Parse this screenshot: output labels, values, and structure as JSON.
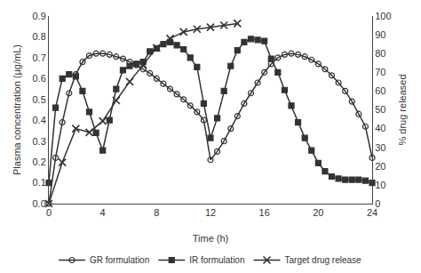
{
  "chart_data": {
    "type": "line",
    "xlabel": "Time (h)",
    "ylabel": "Plasma concentration (μg/mL)",
    "y2label": "% drug released",
    "xlim": [
      0,
      24
    ],
    "ylim": [
      0.0,
      0.9
    ],
    "y2lim": [
      0,
      100
    ],
    "xticks": [
      0,
      4,
      8,
      12,
      16,
      20,
      24
    ],
    "yticks": [
      {
        "value": 0.0,
        "label": "0.0"
      },
      0.1,
      0.2,
      0.3,
      0.4,
      0.5,
      0.6,
      0.7,
      0.8,
      0.9
    ],
    "y2ticks": [
      0,
      10,
      20,
      30,
      40,
      50,
      60,
      70,
      80,
      90,
      100
    ],
    "grid": false,
    "legend": "bottom",
    "series": [
      {
        "name": "GR formulation",
        "color": "#333333",
        "marker": "open circle",
        "x": [
          0,
          0.5,
          1,
          1.5,
          2,
          2.5,
          3,
          3.5,
          4,
          4.5,
          5,
          5.5,
          6,
          6.5,
          7,
          7.5,
          8,
          8.5,
          9,
          9.5,
          10,
          10.5,
          11,
          11.5,
          12,
          12.5,
          13,
          13.5,
          14,
          14.5,
          15,
          15.5,
          16,
          16.5,
          17,
          17.5,
          18,
          18.5,
          19,
          19.5,
          20,
          20.5,
          21,
          21.5,
          22,
          22.5,
          23,
          23.5,
          24
        ],
        "values": [
          0.0,
          0.22,
          0.39,
          0.53,
          0.62,
          0.68,
          0.71,
          0.72,
          0.72,
          0.715,
          0.705,
          0.695,
          0.68,
          0.665,
          0.645,
          0.625,
          0.6,
          0.575,
          0.55,
          0.525,
          0.5,
          0.47,
          0.44,
          0.4,
          0.21,
          0.25,
          0.3,
          0.36,
          0.42,
          0.48,
          0.53,
          0.58,
          0.63,
          0.67,
          0.7,
          0.715,
          0.72,
          0.715,
          0.705,
          0.69,
          0.67,
          0.645,
          0.615,
          0.58,
          0.54,
          0.49,
          0.43,
          0.37,
          0.22
        ]
      },
      {
        "name": "IR formulation",
        "color": "#333333",
        "marker": "square",
        "x": [
          0,
          0.5,
          1,
          1.5,
          2,
          2.5,
          3,
          3.5,
          4,
          4.5,
          5,
          5.5,
          6,
          6.5,
          7,
          7.5,
          8,
          8.5,
          9,
          9.5,
          10,
          10.5,
          11,
          11.5,
          12,
          12.5,
          13,
          13.5,
          14,
          14.5,
          15,
          15.5,
          16,
          16.5,
          17,
          17.5,
          18,
          18.5,
          19,
          19.5,
          20,
          20.5,
          21,
          21.5,
          22,
          22.5,
          23,
          23.5,
          24
        ],
        "values": [
          0.1,
          0.46,
          0.6,
          0.62,
          0.61,
          0.54,
          0.44,
          0.34,
          0.255,
          0.4,
          0.55,
          0.64,
          0.66,
          0.67,
          0.68,
          0.73,
          0.745,
          0.765,
          0.775,
          0.76,
          0.74,
          0.7,
          0.655,
          0.48,
          0.315,
          0.41,
          0.54,
          0.66,
          0.735,
          0.775,
          0.79,
          0.785,
          0.78,
          0.695,
          0.63,
          0.545,
          0.47,
          0.39,
          0.315,
          0.255,
          0.195,
          0.155,
          0.13,
          0.12,
          0.115,
          0.115,
          0.115,
          0.11,
          0.1
        ]
      },
      {
        "name": "Target drug release",
        "color": "#333333",
        "marker": "x",
        "axis": "y2",
        "x": [
          0,
          1,
          2,
          3,
          4,
          5,
          6,
          7,
          8,
          9,
          10,
          11,
          12,
          13,
          14
        ],
        "values": [
          0,
          22,
          40,
          38,
          44,
          55,
          65,
          74,
          83,
          88,
          91.5,
          93,
          94,
          95,
          96
        ]
      }
    ]
  }
}
